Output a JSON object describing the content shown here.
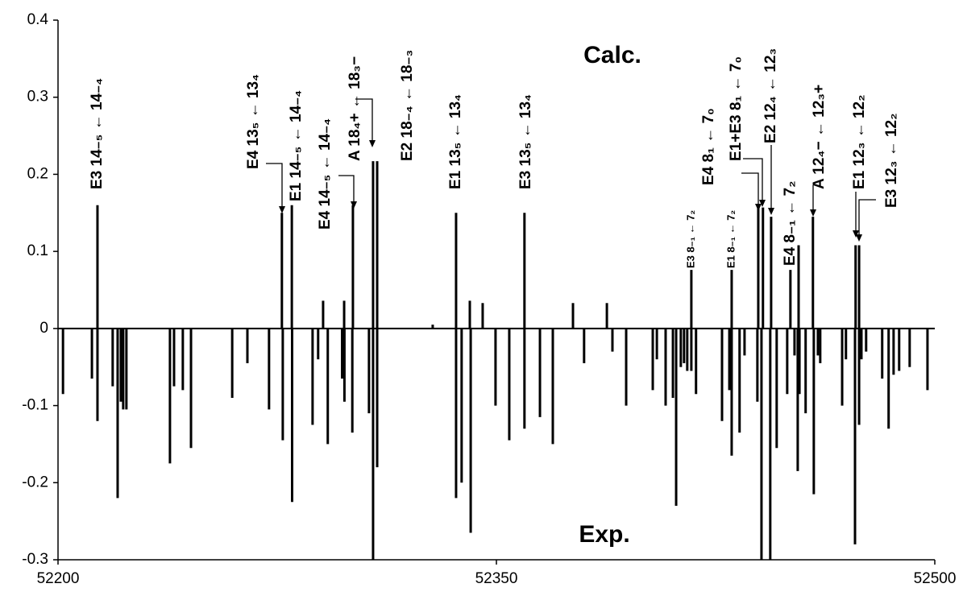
{
  "chart_data": {
    "type": "stem",
    "xlim": [
      52200,
      52500
    ],
    "xticks": [
      52200,
      52350,
      52500
    ],
    "ylim": [
      -0.3,
      0.4
    ],
    "yticks": [
      -0.3,
      -0.2,
      -0.1,
      0,
      0.1,
      0.2,
      0.3,
      0.4
    ],
    "color": "#000000",
    "annotations": [
      "Calc.",
      "Exp.",
      "E3 14₋₅ ← 14₋₄",
      "E4 13₅ ← 13₄",
      "E1 14₋₅ ← 14₋₄",
      "E4 14₋₅ ← 14₋₄",
      "A 18₄+ ← 18₃−",
      "E2 18₋₄ ← 18₋₃",
      "E1 13₅ ← 13₄",
      "E3 13₅ ← 13₄",
      "E3 8₋₁ ← 7₂",
      "E1 8₋₁ ← 7₂",
      "E4 8₁ ← 7₀",
      "E1+E3 8₁ ← 7₀",
      "E2 12₄ ← 12₃",
      "E4 8₋₁ ← 7₂",
      "A 12₄− ← 12₃+",
      "E1 12₃ ← 12₂",
      "E3 12₃ ← 12₂"
    ],
    "series": [
      {
        "x": [
          52213.5,
          52276.6,
          52280.0,
          52290.7,
          52297.9,
          52300.9,
          52307.8,
          52309.2,
          52328.2,
          52336.2,
          52340.9,
          52345.3,
          52359.6,
          52376.2,
          52387.8,
          52416.7,
          52430.5,
          52439.6,
          52441.2,
          52444.0,
          52450.6,
          52453.4,
          52458.3,
          52472.9,
          52474.1
        ],
        "values": [
          0.16,
          0.15,
          0.16,
          0.036,
          0.036,
          0.16,
          0.217,
          0.217,
          0.005,
          0.15,
          0.036,
          0.033,
          0.15,
          0.033,
          0.033,
          0.076,
          0.076,
          0.157,
          0.157,
          0.145,
          0.076,
          0.108,
          0.145,
          0.108,
          0.108
        ]
      },
      {
        "x": [
          52201.7,
          52211.6,
          52213.5,
          52218.7,
          52220.4,
          52221.5,
          52222.3,
          52223.4,
          52238.3,
          52239.7,
          52242.7,
          52245.5,
          52259.6,
          52264.8,
          52272.2,
          52276.9,
          52280.1,
          52287.1,
          52289.0,
          52292.3,
          52297.2,
          52298.0,
          52300.7,
          52306.4,
          52307.8,
          52309.2,
          52336.2,
          52338.1,
          52341.2,
          52349.7,
          52354.4,
          52359.6,
          52364.9,
          52369.3,
          52380.0,
          52389.7,
          52394.4,
          52403.5,
          52404.9,
          52407.9,
          52410.4,
          52411.5,
          52413.1,
          52414.2,
          52415.3,
          52416.7,
          52418.3,
          52427.2,
          52429.7,
          52430.5,
          52433.2,
          52434.9,
          52439.3,
          52440.7,
          52443.7,
          52445.9,
          52449.5,
          52452.0,
          52453.1,
          52453.7,
          52455.8,
          52458.6,
          52460.0,
          52460.8,
          52468.3,
          52469.6,
          52472.7,
          52474.1,
          52474.9,
          52476.5,
          52482.0,
          52484.2,
          52485.9,
          52487.8,
          52491.4,
          52497.5
        ],
        "values": [
          -0.085,
          -0.065,
          -0.12,
          -0.075,
          -0.22,
          -0.095,
          -0.105,
          -0.105,
          -0.175,
          -0.075,
          -0.08,
          -0.155,
          -0.09,
          -0.045,
          -0.105,
          -0.145,
          -0.225,
          -0.125,
          -0.04,
          -0.15,
          -0.065,
          -0.095,
          -0.135,
          -0.11,
          -0.3,
          -0.18,
          -0.22,
          -0.2,
          -0.265,
          -0.1,
          -0.145,
          -0.13,
          -0.115,
          -0.15,
          -0.045,
          -0.03,
          -0.1,
          -0.08,
          -0.04,
          -0.1,
          -0.09,
          -0.23,
          -0.05,
          -0.045,
          -0.055,
          -0.055,
          -0.085,
          -0.12,
          -0.08,
          -0.165,
          -0.135,
          -0.035,
          -0.095,
          -0.3,
          -0.3,
          -0.155,
          -0.085,
          -0.035,
          -0.185,
          -0.085,
          -0.11,
          -0.215,
          -0.035,
          -0.045,
          -0.1,
          -0.04,
          -0.28,
          -0.125,
          -0.04,
          -0.03,
          -0.065,
          -0.13,
          -0.06,
          -0.055,
          -0.05,
          -0.08
        ]
      }
    ]
  }
}
